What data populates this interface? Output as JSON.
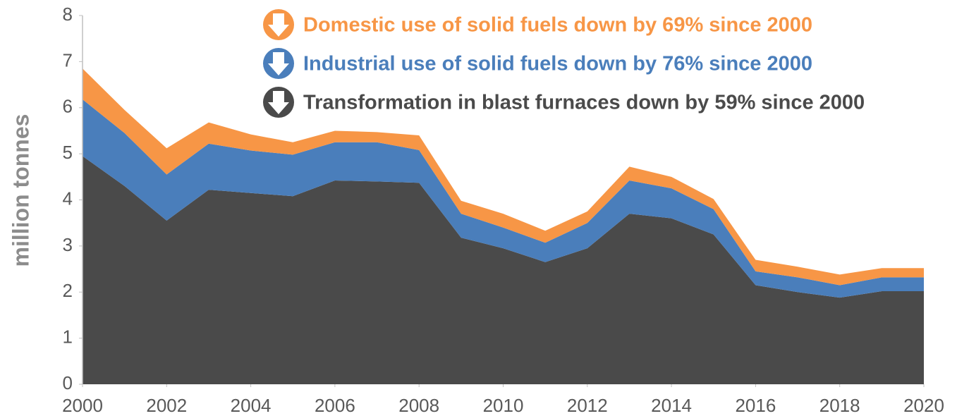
{
  "chart_data": {
    "type": "stacked_area",
    "y_label": "million tonnes",
    "x": [
      2000,
      2001,
      2002,
      2003,
      2004,
      2005,
      2006,
      2007,
      2008,
      2009,
      2010,
      2011,
      2012,
      2013,
      2014,
      2015,
      2016,
      2017,
      2018,
      2019,
      2020
    ],
    "series": [
      {
        "name": "Transformation in blast furnaces down by 59% since 2000",
        "color": "#4a4a4a",
        "values": [
          4.95,
          4.3,
          3.55,
          4.22,
          4.15,
          4.08,
          4.42,
          4.4,
          4.37,
          3.18,
          2.95,
          2.65,
          2.95,
          3.7,
          3.6,
          3.25,
          2.15,
          2.0,
          1.88,
          2.02,
          2.02
        ]
      },
      {
        "name": "Industrial use of solid fuels down by 76% since 2000",
        "color": "#4a7ebb",
        "values": [
          1.23,
          1.15,
          1.0,
          1.0,
          0.92,
          0.9,
          0.83,
          0.85,
          0.71,
          0.52,
          0.45,
          0.42,
          0.55,
          0.72,
          0.65,
          0.55,
          0.3,
          0.32,
          0.27,
          0.3,
          0.3
        ]
      },
      {
        "name": "Domestic use of solid fuels down by 69% since 2000",
        "color": "#f79646",
        "values": [
          0.67,
          0.5,
          0.57,
          0.46,
          0.35,
          0.27,
          0.25,
          0.22,
          0.32,
          0.28,
          0.3,
          0.26,
          0.25,
          0.3,
          0.25,
          0.22,
          0.25,
          0.23,
          0.23,
          0.2,
          0.2
        ]
      }
    ],
    "xlim": [
      2000,
      2020
    ],
    "xticks": [
      2000,
      2002,
      2004,
      2006,
      2008,
      2010,
      2012,
      2014,
      2016,
      2018,
      2020
    ],
    "ylim": [
      0,
      8
    ],
    "yticks": [
      0,
      1,
      2,
      3,
      4,
      5,
      6,
      7,
      8
    ],
    "grid": false
  }
}
